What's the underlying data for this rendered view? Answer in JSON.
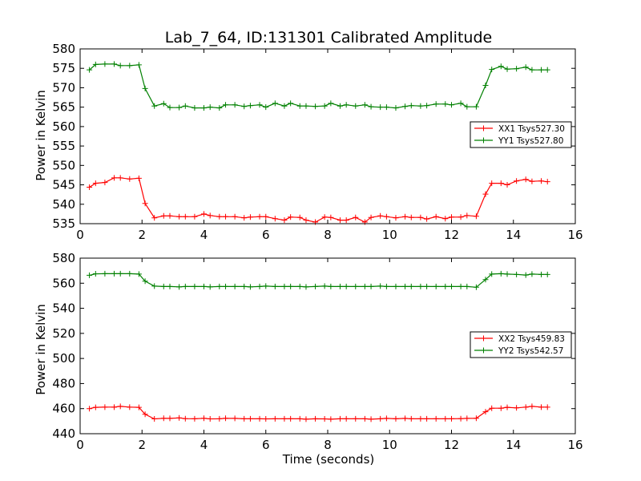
{
  "figure": {
    "title": "Lab_7_64, ID:131301 Calibrated Amplitude",
    "xlabel": "Time (seconds)"
  },
  "chart_data": [
    {
      "type": "line",
      "ylabel": "Power in Kelvin",
      "xlim": [
        0,
        16
      ],
      "ylim": [
        535,
        580
      ],
      "xticks": [
        "0",
        "2",
        "4",
        "6",
        "8",
        "10",
        "12",
        "14",
        "16"
      ],
      "yticks": [
        "535",
        "540",
        "545",
        "550",
        "555",
        "560",
        "565",
        "570",
        "575",
        "580"
      ],
      "grid": false,
      "legend": "right",
      "series": [
        {
          "name": "XX1 Tsys527.30",
          "color": "#ff0000",
          "x": [
            0.3,
            0.5,
            0.8,
            1.1,
            1.3,
            1.6,
            1.9,
            2.1,
            2.4,
            2.7,
            2.9,
            3.2,
            3.4,
            3.7,
            4.0,
            4.2,
            4.5,
            4.7,
            5.0,
            5.3,
            5.5,
            5.8,
            6.0,
            6.3,
            6.6,
            6.8,
            7.1,
            7.3,
            7.6,
            7.9,
            8.1,
            8.4,
            8.6,
            8.9,
            9.2,
            9.4,
            9.7,
            9.9,
            10.2,
            10.5,
            10.7,
            11.0,
            11.2,
            11.5,
            11.8,
            12.0,
            12.3,
            12.5,
            12.8,
            13.1,
            13.3,
            13.6,
            13.8,
            14.1,
            14.4,
            14.6,
            14.9,
            15.1
          ],
          "y": [
            544.4,
            545.4,
            545.6,
            546.8,
            546.8,
            546.5,
            546.7,
            540.2,
            536.5,
            537.0,
            537.0,
            536.8,
            536.8,
            536.8,
            537.5,
            537.1,
            536.8,
            536.8,
            536.8,
            536.5,
            536.7,
            536.8,
            536.8,
            536.3,
            535.9,
            536.7,
            536.6,
            535.9,
            535.4,
            536.7,
            536.6,
            535.9,
            535.9,
            536.6,
            535.4,
            536.6,
            537.0,
            536.8,
            536.5,
            536.8,
            536.6,
            536.6,
            536.2,
            536.8,
            536.3,
            536.7,
            536.7,
            537.1,
            536.9,
            542.6,
            545.4,
            545.4,
            545.0,
            546.0,
            546.4,
            545.9,
            546.0,
            545.8
          ]
        },
        {
          "name": "YY1 Tsys527.80",
          "color": "#008000",
          "x": [
            0.3,
            0.5,
            0.8,
            1.1,
            1.3,
            1.6,
            1.9,
            2.1,
            2.4,
            2.7,
            2.9,
            3.2,
            3.4,
            3.7,
            4.0,
            4.2,
            4.5,
            4.7,
            5.0,
            5.3,
            5.5,
            5.8,
            6.0,
            6.3,
            6.6,
            6.8,
            7.1,
            7.3,
            7.6,
            7.9,
            8.1,
            8.4,
            8.6,
            8.9,
            9.2,
            9.4,
            9.7,
            9.9,
            10.2,
            10.5,
            10.7,
            11.0,
            11.2,
            11.5,
            11.8,
            12.0,
            12.3,
            12.5,
            12.8,
            13.1,
            13.3,
            13.6,
            13.8,
            14.1,
            14.4,
            14.6,
            14.9,
            15.1
          ],
          "y": [
            574.6,
            576.0,
            576.1,
            576.1,
            575.7,
            575.7,
            575.9,
            569.8,
            565.3,
            565.9,
            564.9,
            564.9,
            565.3,
            564.8,
            564.8,
            565.0,
            564.8,
            565.6,
            565.6,
            565.2,
            565.4,
            565.6,
            565.0,
            566.0,
            565.3,
            566.0,
            565.3,
            565.3,
            565.2,
            565.3,
            566.0,
            565.3,
            565.6,
            565.3,
            565.6,
            565.1,
            565.0,
            565.0,
            564.8,
            565.2,
            565.4,
            565.3,
            565.4,
            565.8,
            565.8,
            565.6,
            566.0,
            565.1,
            565.1,
            570.6,
            574.7,
            575.5,
            574.8,
            574.9,
            575.3,
            574.6,
            574.6,
            574.6
          ]
        }
      ]
    },
    {
      "type": "line",
      "ylabel": "Power in Kelvin",
      "xlim": [
        0,
        16
      ],
      "ylim": [
        440,
        580
      ],
      "xticks": [
        "0",
        "2",
        "4",
        "6",
        "8",
        "10",
        "12",
        "14",
        "16"
      ],
      "yticks": [
        "440",
        "460",
        "480",
        "500",
        "520",
        "540",
        "560",
        "580"
      ],
      "grid": false,
      "legend": "right",
      "series": [
        {
          "name": "XX2 Tsys459.83",
          "color": "#ff0000",
          "x": [
            0.3,
            0.5,
            0.8,
            1.1,
            1.3,
            1.6,
            1.9,
            2.1,
            2.4,
            2.7,
            2.9,
            3.2,
            3.4,
            3.7,
            4.0,
            4.2,
            4.5,
            4.7,
            5.0,
            5.3,
            5.5,
            5.8,
            6.0,
            6.3,
            6.6,
            6.8,
            7.1,
            7.3,
            7.6,
            7.9,
            8.1,
            8.4,
            8.6,
            8.9,
            9.2,
            9.4,
            9.7,
            9.9,
            10.2,
            10.5,
            10.7,
            11.0,
            11.2,
            11.5,
            11.8,
            12.0,
            12.3,
            12.5,
            12.8,
            13.1,
            13.3,
            13.6,
            13.8,
            14.1,
            14.4,
            14.6,
            14.9,
            15.1
          ],
          "y": [
            460.0,
            461.0,
            461.2,
            461.2,
            461.8,
            461.2,
            461.0,
            455.5,
            451.8,
            452.3,
            452.2,
            452.6,
            452.0,
            451.9,
            452.3,
            451.8,
            451.9,
            452.3,
            452.2,
            451.9,
            451.9,
            451.9,
            451.8,
            451.9,
            451.9,
            451.9,
            451.9,
            451.6,
            451.9,
            451.8,
            451.6,
            451.9,
            451.9,
            451.9,
            451.9,
            451.6,
            451.9,
            452.2,
            451.9,
            452.2,
            451.9,
            451.9,
            451.9,
            451.9,
            451.9,
            451.9,
            452.0,
            452.2,
            452.3,
            457.5,
            460.3,
            460.3,
            461.0,
            460.6,
            461.2,
            461.8,
            461.2,
            461.2
          ]
        },
        {
          "name": "YY2 Tsys542.57",
          "color": "#008000",
          "x": [
            0.3,
            0.5,
            0.8,
            1.1,
            1.3,
            1.6,
            1.9,
            2.1,
            2.4,
            2.7,
            2.9,
            3.2,
            3.4,
            3.7,
            4.0,
            4.2,
            4.5,
            4.7,
            5.0,
            5.3,
            5.5,
            5.8,
            6.0,
            6.3,
            6.6,
            6.8,
            7.1,
            7.3,
            7.6,
            7.9,
            8.1,
            8.4,
            8.6,
            8.9,
            9.2,
            9.4,
            9.7,
            9.9,
            10.2,
            10.5,
            10.7,
            11.0,
            11.2,
            11.5,
            11.8,
            12.0,
            12.3,
            12.5,
            12.8,
            13.1,
            13.3,
            13.6,
            13.8,
            14.1,
            14.4,
            14.6,
            14.9,
            15.1
          ],
          "y": [
            566.3,
            567.5,
            567.6,
            567.6,
            567.6,
            567.6,
            567.3,
            561.6,
            557.7,
            557.4,
            557.4,
            557.1,
            557.4,
            557.4,
            557.4,
            557.1,
            557.4,
            557.4,
            557.4,
            557.4,
            557.1,
            557.4,
            557.7,
            557.4,
            557.4,
            557.4,
            557.4,
            557.1,
            557.4,
            557.7,
            557.4,
            557.4,
            557.4,
            557.4,
            557.4,
            557.4,
            557.7,
            557.4,
            557.4,
            557.4,
            557.4,
            557.4,
            557.4,
            557.4,
            557.4,
            557.4,
            557.4,
            557.4,
            556.8,
            562.9,
            567.3,
            567.6,
            567.3,
            567.0,
            566.5,
            567.3,
            567.0,
            567.0
          ]
        }
      ]
    }
  ]
}
